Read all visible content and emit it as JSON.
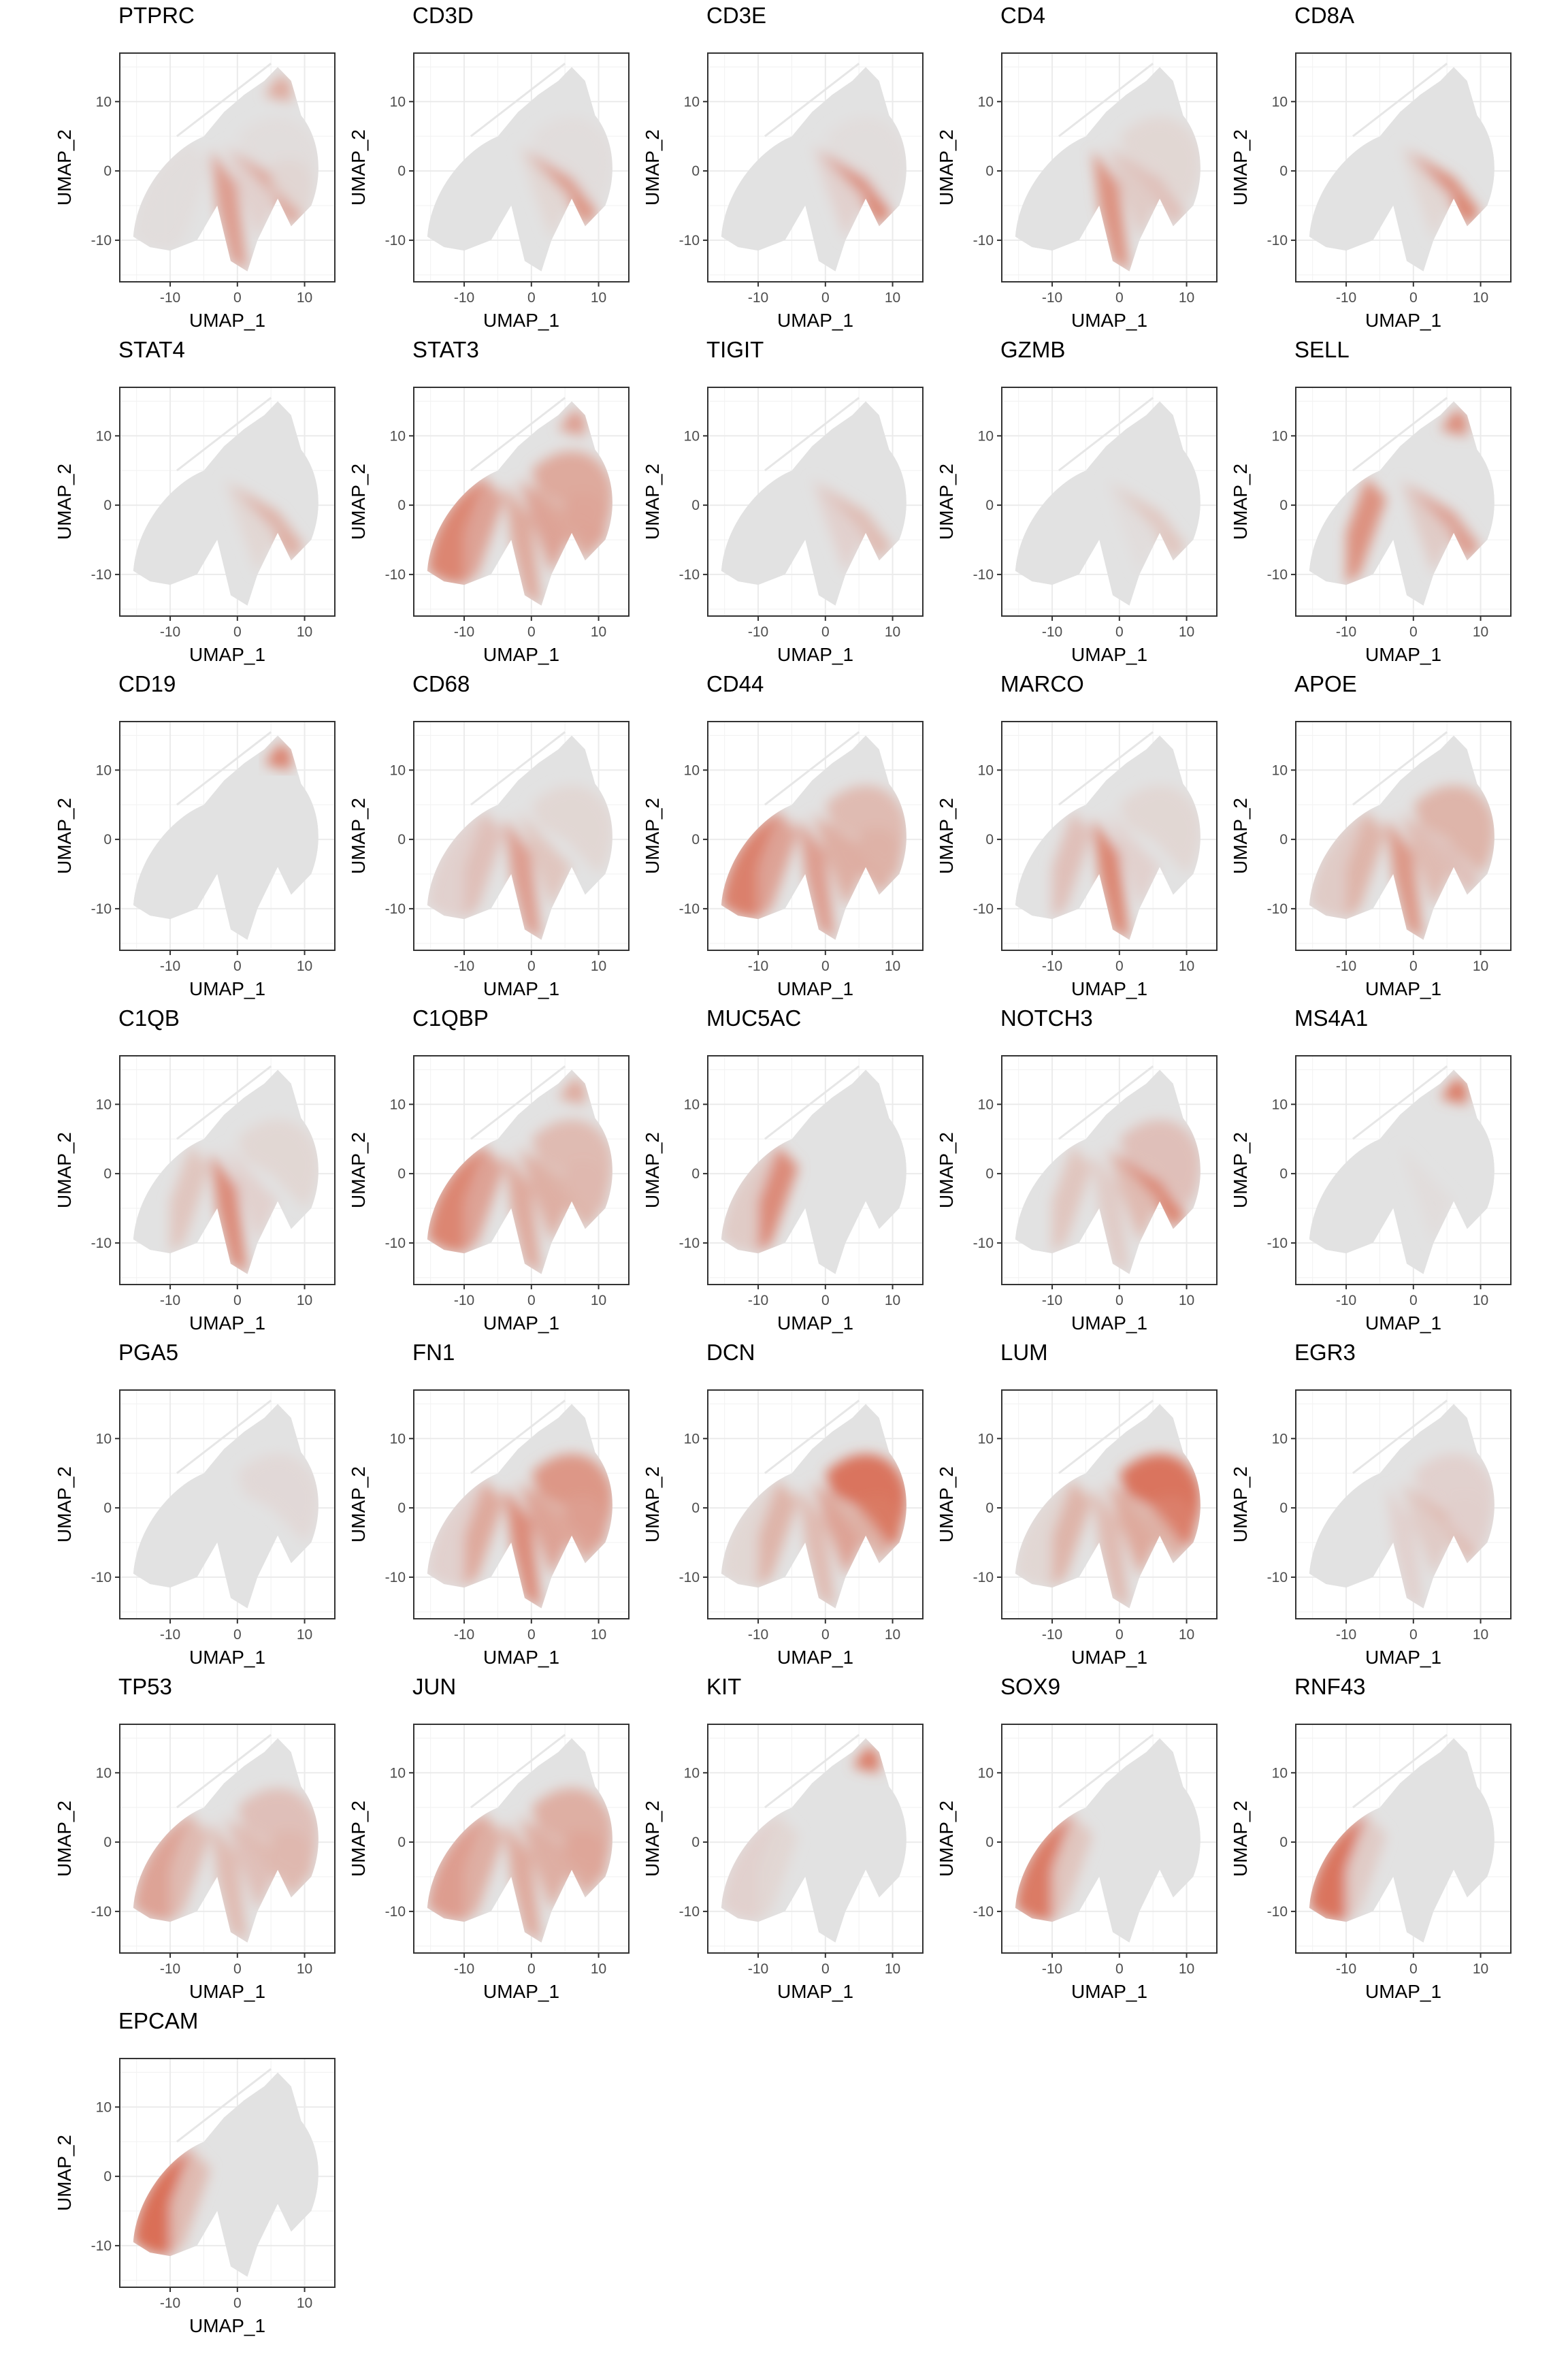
{
  "figure": {
    "type": "umap_feature_plot_grid",
    "description_visible": "Feature expression on UMAP embedding"
  },
  "chart_data": {
    "type": "scatter",
    "xlabel": "UMAP_1",
    "ylabel": "UMAP_2",
    "x_ticks": [
      -10,
      0,
      10
    ],
    "y_ticks": [
      10,
      0,
      -10
    ],
    "xlim": [
      -17.5,
      14.5
    ],
    "ylim": [
      -16,
      17
    ],
    "grid": true,
    "colors": {
      "low": "#e2e2e2",
      "high": "#d9694f",
      "panel_border": "#333333",
      "grid": "#ebebeb"
    },
    "panels": [
      {
        "title": "PTPRC",
        "regions": {
          "tcell": 0.55,
          "left_arc": 0.05,
          "bottom": 0.6,
          "mid": 0.15,
          "epith": 0.05,
          "top_tip": 0.5,
          "fib": 0.05,
          "right": 0.1
        }
      },
      {
        "title": "CD3D",
        "regions": {
          "tcell": 0.65,
          "mid": 0.1,
          "fib": 0.05
        }
      },
      {
        "title": "CD3E",
        "regions": {
          "tcell": 0.75,
          "mid": 0.15,
          "fib": 0.05
        }
      },
      {
        "title": "CD4",
        "regions": {
          "bottom": 0.7,
          "tcell": 0.3,
          "mid": 0.2,
          "fib": 0.1
        }
      },
      {
        "title": "CD8A",
        "regions": {
          "tcell": 0.8,
          "mid": 0.1
        }
      },
      {
        "title": "STAT4",
        "regions": {
          "tcell": 0.45,
          "mid": 0.1
        }
      },
      {
        "title": "STAT3",
        "regions": {
          "epith": 0.8,
          "left_arc": 0.55,
          "bottom": 0.5,
          "mid": 0.55,
          "right": 0.6,
          "fib": 0.5,
          "tcell": 0.5,
          "top_tip": 0.6
        }
      },
      {
        "title": "TIGIT",
        "regions": {
          "tcell": 0.35,
          "mid": 0.15
        }
      },
      {
        "title": "GZMB",
        "regions": {
          "tcell": 0.25,
          "mid": 0.05
        }
      },
      {
        "title": "SELL",
        "regions": {
          "tcell": 0.6,
          "left_arc": 0.7,
          "top_tip": 0.75,
          "mid": 0.2
        }
      },
      {
        "title": "CD19",
        "regions": {
          "top_tip": 0.85
        }
      },
      {
        "title": "CD68",
        "regions": {
          "bottom": 0.6,
          "left_arc": 0.3,
          "mid": 0.25,
          "epith": 0.15,
          "fib": 0.1
        }
      },
      {
        "title": "CD44",
        "regions": {
          "epith": 0.85,
          "left_arc": 0.55,
          "bottom": 0.6,
          "mid": 0.45,
          "fib": 0.35,
          "tcell": 0.45,
          "right": 0.4
        }
      },
      {
        "title": "MARCO",
        "regions": {
          "bottom": 0.8,
          "left_arc": 0.3,
          "mid": 0.15,
          "fib": 0.1
        }
      },
      {
        "title": "APOE",
        "regions": {
          "bottom": 0.65,
          "left_arc": 0.4,
          "mid": 0.35,
          "fib": 0.4,
          "tcell": 0.3,
          "epith": 0.2
        }
      },
      {
        "title": "C1QB",
        "regions": {
          "bottom": 0.75,
          "left_arc": 0.25,
          "mid": 0.15,
          "fib": 0.1
        }
      },
      {
        "title": "C1QBP",
        "regions": {
          "epith": 0.8,
          "left_arc": 0.55,
          "bottom": 0.5,
          "mid": 0.45,
          "fib": 0.35,
          "tcell": 0.4,
          "right": 0.35,
          "top_tip": 0.5
        }
      },
      {
        "title": "MUC5AC",
        "regions": {
          "left_arc": 0.75,
          "epith": 0.2
        }
      },
      {
        "title": "NOTCH3",
        "regions": {
          "tcell": 0.8,
          "mid": 0.35,
          "fib": 0.3,
          "left_arc": 0.25,
          "bottom": 0.2
        }
      },
      {
        "title": "MS4A1",
        "regions": {
          "top_tip": 0.9,
          "mid": 0.05
        }
      },
      {
        "title": "PGA5",
        "regions": {
          "fib": 0.08
        }
      },
      {
        "title": "FN1",
        "regions": {
          "fib": 0.65,
          "mid": 0.55,
          "bottom": 0.75,
          "left_arc": 0.5,
          "tcell": 0.5,
          "right": 0.55,
          "epith": 0.15
        }
      },
      {
        "title": "DCN",
        "regions": {
          "fib": 0.95,
          "mid": 0.55,
          "right": 0.85,
          "bottom": 0.35,
          "left_arc": 0.4,
          "tcell": 0.4,
          "epith": 0.1
        }
      },
      {
        "title": "LUM",
        "regions": {
          "fib": 0.95,
          "mid": 0.5,
          "right": 0.8,
          "bottom": 0.35,
          "left_arc": 0.4,
          "tcell": 0.4,
          "epith": 0.1
        }
      },
      {
        "title": "EGR3",
        "regions": {
          "tcell": 0.35,
          "mid": 0.2,
          "bottom": 0.15,
          "fib": 0.15,
          "right": 0.15
        }
      },
      {
        "title": "TP53",
        "regions": {
          "epith": 0.55,
          "left_arc": 0.35,
          "bottom": 0.35,
          "mid": 0.3,
          "fib": 0.3,
          "tcell": 0.35,
          "right": 0.35
        }
      },
      {
        "title": "JUN",
        "regions": {
          "epith": 0.6,
          "left_arc": 0.45,
          "bottom": 0.5,
          "mid": 0.45,
          "fib": 0.45,
          "tcell": 0.45,
          "right": 0.5
        }
      },
      {
        "title": "KIT",
        "regions": {
          "top_tip": 0.9,
          "epith": 0.15,
          "left_arc": 0.1
        }
      },
      {
        "title": "SOX9",
        "regions": {
          "epith": 0.9,
          "left_arc": 0.25
        }
      },
      {
        "title": "RNF43",
        "regions": {
          "epith": 0.95,
          "left_arc": 0.2
        }
      },
      {
        "title": "EPCAM",
        "regions": {
          "epith": 1.0,
          "left_arc": 0.35
        }
      }
    ]
  }
}
